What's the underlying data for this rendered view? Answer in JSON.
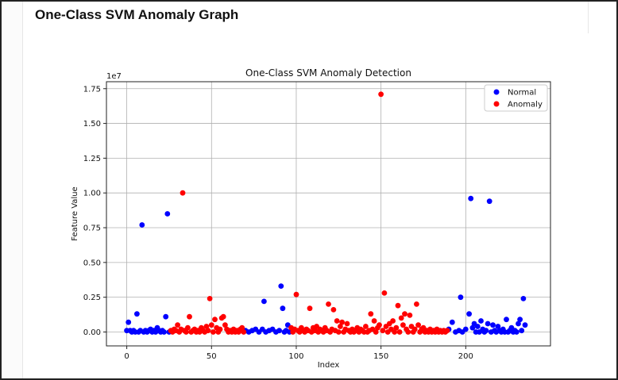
{
  "page": {
    "heading": "One-Class SVM Anomaly Graph"
  },
  "chart_data": {
    "type": "scatter",
    "title": "One-Class SVM Anomaly Detection",
    "xlabel": "Index",
    "ylabel": "Feature Value",
    "y_offset_label": "1e7",
    "xlim": [
      -12,
      250
    ],
    "ylim": [
      -0.1,
      1.8
    ],
    "xticks": [
      0,
      50,
      100,
      150,
      200
    ],
    "yticks": [
      0.0,
      0.25,
      0.5,
      0.75,
      1.0,
      1.25,
      1.5,
      1.75
    ],
    "ytick_labels": [
      "0.00",
      "0.25",
      "0.50",
      "0.75",
      "1.00",
      "1.25",
      "1.50",
      "1.75"
    ],
    "grid": true,
    "legend": "top-right",
    "series": [
      {
        "name": "Normal",
        "color": "#0000ff",
        "points": [
          [
            0,
            0.01
          ],
          [
            1,
            0.07
          ],
          [
            2,
            0.01
          ],
          [
            3,
            0.0
          ],
          [
            4,
            0.01
          ],
          [
            5,
            0.0
          ],
          [
            6,
            0.13
          ],
          [
            7,
            0.0
          ],
          [
            8,
            0.01
          ],
          [
            9,
            0.77
          ],
          [
            10,
            0.0
          ],
          [
            11,
            0.01
          ],
          [
            12,
            0.0
          ],
          [
            13,
            0.01
          ],
          [
            14,
            0.02
          ],
          [
            15,
            0.0
          ],
          [
            16,
            0.01
          ],
          [
            17,
            0.0
          ],
          [
            18,
            0.03
          ],
          [
            19,
            0.01
          ],
          [
            20,
            0.0
          ],
          [
            21,
            0.01
          ],
          [
            22,
            0.0
          ],
          [
            23,
            0.11
          ],
          [
            24,
            0.85
          ],
          [
            25,
            0.0
          ],
          [
            70,
            0.01
          ],
          [
            72,
            0.0
          ],
          [
            74,
            0.01
          ],
          [
            76,
            0.02
          ],
          [
            78,
            0.0
          ],
          [
            80,
            0.02
          ],
          [
            81,
            0.22
          ],
          [
            82,
            0.0
          ],
          [
            84,
            0.01
          ],
          [
            86,
            0.02
          ],
          [
            88,
            0.0
          ],
          [
            90,
            0.01
          ],
          [
            91,
            0.33
          ],
          [
            92,
            0.17
          ],
          [
            93,
            0.0
          ],
          [
            94,
            0.01
          ],
          [
            95,
            0.05
          ],
          [
            96,
            0.0
          ],
          [
            190,
            0.02
          ],
          [
            192,
            0.07
          ],
          [
            194,
            0.0
          ],
          [
            196,
            0.01
          ],
          [
            197,
            0.25
          ],
          [
            198,
            0.0
          ],
          [
            200,
            0.02
          ],
          [
            202,
            0.13
          ],
          [
            203,
            0.96
          ],
          [
            204,
            0.03
          ],
          [
            205,
            0.06
          ],
          [
            206,
            0.0
          ],
          [
            207,
            0.04
          ],
          [
            208,
            0.0
          ],
          [
            209,
            0.08
          ],
          [
            210,
            0.02
          ],
          [
            211,
            0.0
          ],
          [
            212,
            0.01
          ],
          [
            213,
            0.06
          ],
          [
            214,
            0.94
          ],
          [
            215,
            0.0
          ],
          [
            216,
            0.05
          ],
          [
            217,
            0.01
          ],
          [
            218,
            0.0
          ],
          [
            219,
            0.04
          ],
          [
            220,
            0.01
          ],
          [
            221,
            0.0
          ],
          [
            222,
            0.02
          ],
          [
            223,
            0.0
          ],
          [
            224,
            0.09
          ],
          [
            225,
            0.0
          ],
          [
            226,
            0.01
          ],
          [
            227,
            0.03
          ],
          [
            228,
            0.0
          ],
          [
            229,
            0.01
          ],
          [
            230,
            0.0
          ],
          [
            231,
            0.06
          ],
          [
            232,
            0.09
          ],
          [
            233,
            0.01
          ],
          [
            234,
            0.24
          ],
          [
            235,
            0.05
          ]
        ]
      },
      {
        "name": "Anomaly",
        "color": "#ff0000",
        "points": [
          [
            26,
            0.01
          ],
          [
            27,
            0.0
          ],
          [
            28,
            0.02
          ],
          [
            29,
            0.01
          ],
          [
            30,
            0.05
          ],
          [
            31,
            0.0
          ],
          [
            32,
            0.02
          ],
          [
            33,
            1.0
          ],
          [
            34,
            0.01
          ],
          [
            35,
            0.0
          ],
          [
            36,
            0.03
          ],
          [
            37,
            0.11
          ],
          [
            38,
            0.0
          ],
          [
            39,
            0.01
          ],
          [
            40,
            0.02
          ],
          [
            41,
            0.0
          ],
          [
            42,
            0.01
          ],
          [
            43,
            0.0
          ],
          [
            44,
            0.03
          ],
          [
            45,
            0.01
          ],
          [
            46,
            0.0
          ],
          [
            47,
            0.04
          ],
          [
            48,
            0.01
          ],
          [
            49,
            0.24
          ],
          [
            50,
            0.05
          ],
          [
            51,
            0.0
          ],
          [
            52,
            0.09
          ],
          [
            53,
            0.03
          ],
          [
            54,
            0.0
          ],
          [
            55,
            0.02
          ],
          [
            56,
            0.1
          ],
          [
            57,
            0.11
          ],
          [
            58,
            0.05
          ],
          [
            59,
            0.02
          ],
          [
            60,
            0.0
          ],
          [
            61,
            0.01
          ],
          [
            62,
            0.0
          ],
          [
            63,
            0.02
          ],
          [
            64,
            0.0
          ],
          [
            65,
            0.01
          ],
          [
            66,
            0.0
          ],
          [
            67,
            0.02
          ],
          [
            68,
            0.03
          ],
          [
            69,
            0.0
          ],
          [
            97,
            0.03
          ],
          [
            98,
            0.0
          ],
          [
            99,
            0.02
          ],
          [
            100,
            0.27
          ],
          [
            101,
            0.01
          ],
          [
            102,
            0.0
          ],
          [
            103,
            0.03
          ],
          [
            104,
            0.01
          ],
          [
            105,
            0.0
          ],
          [
            106,
            0.02
          ],
          [
            107,
            0.01
          ],
          [
            108,
            0.17
          ],
          [
            109,
            0.0
          ],
          [
            110,
            0.03
          ],
          [
            111,
            0.01
          ],
          [
            112,
            0.04
          ],
          [
            113,
            0.0
          ],
          [
            114,
            0.02
          ],
          [
            115,
            0.01
          ],
          [
            116,
            0.0
          ],
          [
            117,
            0.03
          ],
          [
            118,
            0.01
          ],
          [
            119,
            0.2
          ],
          [
            120,
            0.0
          ],
          [
            121,
            0.02
          ],
          [
            122,
            0.16
          ],
          [
            123,
            0.01
          ],
          [
            124,
            0.08
          ],
          [
            125,
            0.0
          ],
          [
            126,
            0.04
          ],
          [
            127,
            0.07
          ],
          [
            128,
            0.0
          ],
          [
            129,
            0.02
          ],
          [
            130,
            0.06
          ],
          [
            131,
            0.01
          ],
          [
            132,
            0.0
          ],
          [
            133,
            0.02
          ],
          [
            134,
            0.0
          ],
          [
            135,
            0.01
          ],
          [
            136,
            0.03
          ],
          [
            137,
            0.0
          ],
          [
            138,
            0.02
          ],
          [
            139,
            0.01
          ],
          [
            140,
            0.0
          ],
          [
            141,
            0.04
          ],
          [
            142,
            0.0
          ],
          [
            143,
            0.01
          ],
          [
            144,
            0.13
          ],
          [
            145,
            0.02
          ],
          [
            146,
            0.08
          ],
          [
            147,
            0.0
          ],
          [
            148,
            0.03
          ],
          [
            149,
            0.05
          ],
          [
            150,
            1.71
          ],
          [
            151,
            0.01
          ],
          [
            152,
            0.28
          ],
          [
            153,
            0.04
          ],
          [
            154,
            0.0
          ],
          [
            155,
            0.06
          ],
          [
            156,
            0.02
          ],
          [
            157,
            0.08
          ],
          [
            158,
            0.0
          ],
          [
            159,
            0.03
          ],
          [
            160,
            0.19
          ],
          [
            161,
            0.0
          ],
          [
            162,
            0.1
          ],
          [
            163,
            0.05
          ],
          [
            164,
            0.13
          ],
          [
            165,
            0.02
          ],
          [
            166,
            0.0
          ],
          [
            167,
            0.12
          ],
          [
            168,
            0.04
          ],
          [
            169,
            0.0
          ],
          [
            170,
            0.02
          ],
          [
            171,
            0.2
          ],
          [
            172,
            0.05
          ],
          [
            173,
            0.0
          ],
          [
            174,
            0.02
          ],
          [
            175,
            0.03
          ],
          [
            176,
            0.0
          ],
          [
            177,
            0.01
          ],
          [
            178,
            0.0
          ],
          [
            179,
            0.02
          ],
          [
            180,
            0.0
          ],
          [
            181,
            0.01
          ],
          [
            182,
            0.0
          ],
          [
            183,
            0.02
          ],
          [
            184,
            0.0
          ],
          [
            185,
            0.01
          ],
          [
            186,
            0.0
          ],
          [
            187,
            0.01
          ],
          [
            188,
            0.0
          ],
          [
            189,
            0.01
          ]
        ]
      }
    ]
  }
}
